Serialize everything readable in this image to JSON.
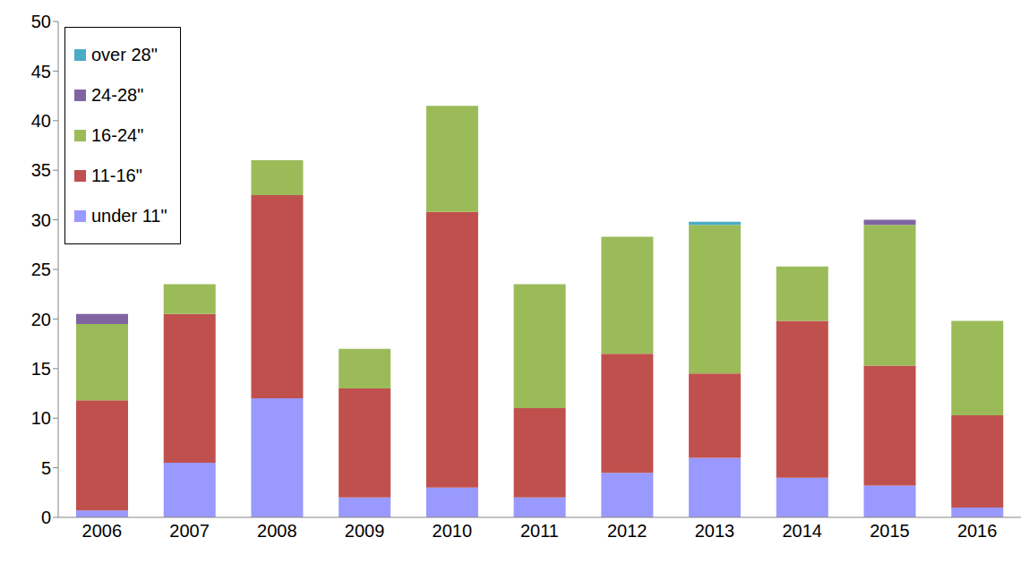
{
  "chart_data": {
    "type": "bar",
    "stacked": true,
    "grid": false,
    "legend": "upper left",
    "categories": [
      "2006",
      "2007",
      "2008",
      "2009",
      "2010",
      "2011",
      "2012",
      "2013",
      "2014",
      "2015",
      "2016"
    ],
    "ylim": [
      0,
      50
    ],
    "yticks": [
      0,
      5,
      10,
      15,
      20,
      25,
      30,
      35,
      40,
      45,
      50
    ],
    "series": [
      {
        "name": "under 11\"",
        "color": "#9999ff",
        "values": [
          0.7,
          5.5,
          12,
          2,
          3,
          2,
          4.5,
          6,
          4,
          3.2,
          1
        ]
      },
      {
        "name": "11-16\"",
        "color": "#c0504d",
        "values": [
          11.1,
          15,
          20.5,
          11,
          27.8,
          9,
          12,
          8.5,
          15.8,
          12.1,
          9.3
        ]
      },
      {
        "name": "16-24\"",
        "color": "#9bbb59",
        "values": [
          7.7,
          3,
          3.5,
          4,
          10.7,
          12.5,
          11.8,
          15,
          5.5,
          14.2,
          9.5
        ]
      },
      {
        "name": "24-28\"",
        "color": "#8064a2",
        "values": [
          1,
          0,
          0,
          0,
          0,
          0,
          0,
          0,
          0,
          0.5,
          0
        ]
      },
      {
        "name": "over 28\"",
        "color": "#4bacc6",
        "values": [
          0,
          0,
          0,
          0,
          0,
          0,
          0,
          0.3,
          0,
          0,
          0
        ]
      }
    ]
  }
}
